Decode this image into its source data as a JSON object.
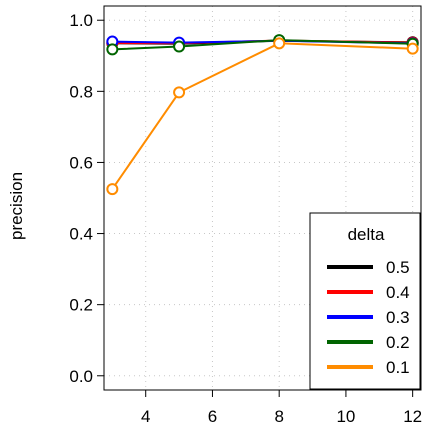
{
  "chart_data": {
    "type": "line",
    "title": "",
    "xlabel": "",
    "ylabel": "precision",
    "xlim": [
      2.75,
      12.25
    ],
    "ylim": [
      -0.04,
      1.04
    ],
    "xticks": [
      4,
      6,
      8,
      10,
      12
    ],
    "yticks": [
      0.0,
      0.2,
      0.4,
      0.6,
      0.8,
      1.0
    ],
    "ytick_labels": [
      "0.0",
      "0.2",
      "0.4",
      "0.6",
      "0.8",
      "1.0"
    ],
    "grid": true,
    "legend_placement": "bottom-right",
    "legend_title": "delta",
    "x": [
      3,
      5,
      8,
      12
    ],
    "series": [
      {
        "name": "0.5",
        "color": "#000000",
        "values": [
          0.935,
          0.934,
          0.942,
          0.938
        ]
      },
      {
        "name": "0.4",
        "color": "#ff0000",
        "values": [
          0.936,
          0.935,
          0.943,
          0.937
        ]
      },
      {
        "name": "0.3",
        "color": "#0000ff",
        "values": [
          0.94,
          0.937,
          0.942,
          0.935
        ]
      },
      {
        "name": "0.2",
        "color": "#006400",
        "values": [
          0.918,
          0.926,
          0.944,
          0.934
        ]
      },
      {
        "name": "0.1",
        "color": "#ff8c00",
        "values": [
          0.525,
          0.797,
          0.935,
          0.92
        ]
      }
    ]
  }
}
